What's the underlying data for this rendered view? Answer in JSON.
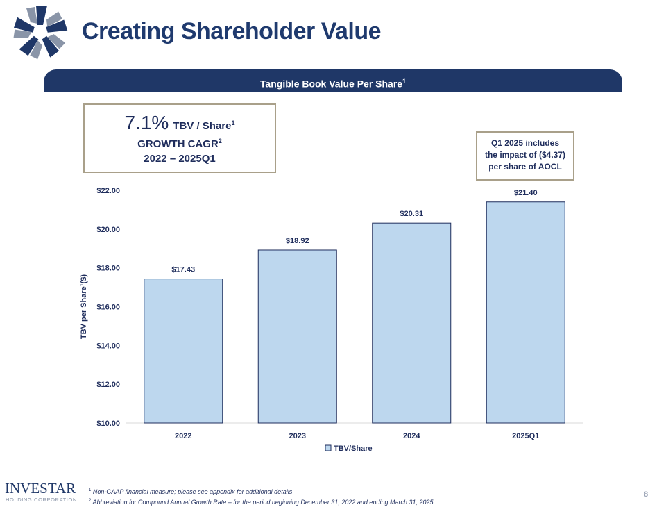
{
  "header": {
    "title": "Creating Shareholder Value"
  },
  "banner": {
    "text": "Tangible Book Value Per Share",
    "sup": "1"
  },
  "cagr_box": {
    "percent": "7.1%",
    "label": "TBV / Share",
    "label_sup": "1",
    "line2": "GROWTH CAGR",
    "line2_sup": "2",
    "line3": "2022 – 2025Q1"
  },
  "note_box": {
    "line1": "Q1 2025 includes",
    "line2": "the impact of ($4.37)",
    "line3": "per share of AOCL"
  },
  "chart_data": {
    "type": "bar",
    "categories": [
      "2022",
      "2023",
      "2024",
      "2025Q1"
    ],
    "series": [
      {
        "name": "TBV/Share",
        "values": [
          17.43,
          18.92,
          20.31,
          21.4
        ],
        "labels": [
          "$17.43",
          "$18.92",
          "$20.31",
          "$21.40"
        ]
      }
    ],
    "ylabel": "TBV per Share",
    "ylabel_sup": "1",
    "ylabel_unit": "($)",
    "ylim": [
      10,
      22
    ],
    "yticks": [
      10,
      12,
      14,
      16,
      18,
      20,
      22
    ],
    "ytick_labels": [
      "$10.00",
      "$12.00",
      "$14.00",
      "$16.00",
      "$18.00",
      "$20.00",
      "$22.00"
    ],
    "legend": "bottom-center",
    "bar_color": "#bdd7ee",
    "bar_border": "#1f2d5c"
  },
  "footer": {
    "logo_word": "INVESTAR",
    "logo_sub": "HOLDING CORPORATION",
    "footnote1_sup": "1",
    "footnote1": "Non-GAAP financial measure; please see appendix for additional details",
    "footnote2_sup": "2",
    "footnote2": "Abbreviation for Compound Annual Growth Rate – for the period beginning December 31, 2022 and ending March 31, 2025",
    "page_number": "8"
  },
  "colors": {
    "navy": "#1f3767",
    "box_border": "#a9a08a",
    "logo_gray": "#8a95a8"
  }
}
